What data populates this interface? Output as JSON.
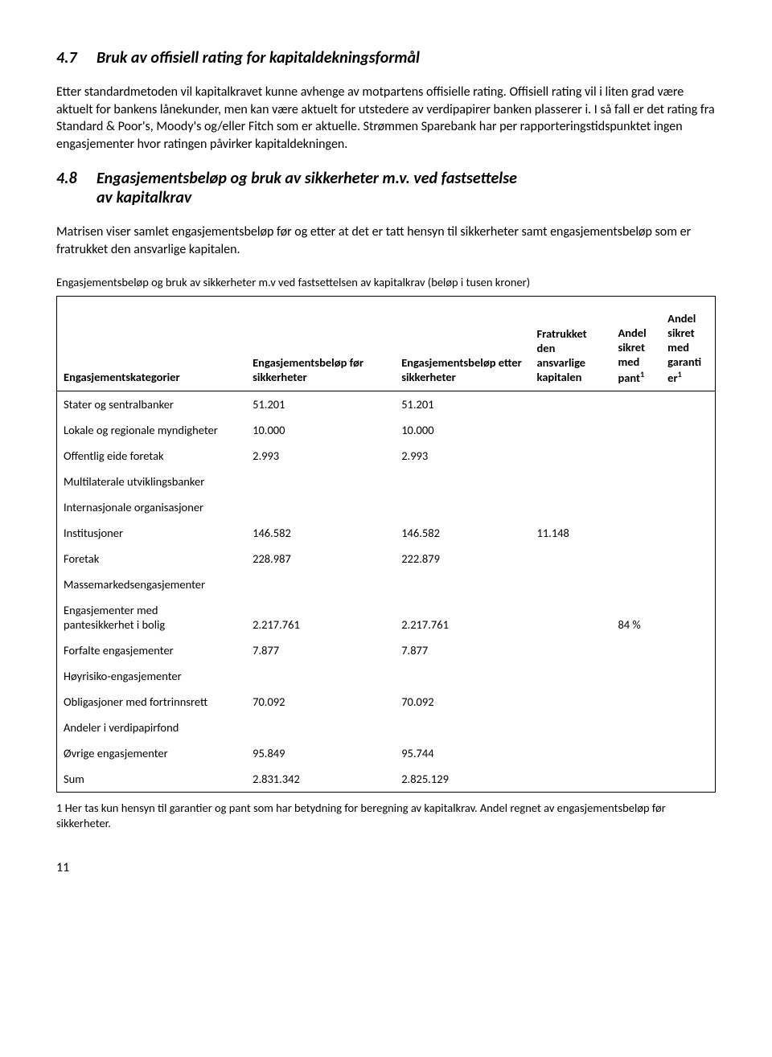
{
  "section47": {
    "num": "4.7",
    "title": "Bruk av offisiell rating for kapitaldekningsformål",
    "para": "Etter standardmetoden vil kapitalkravet kunne avhenge av motpartens offisielle rating. Offisiell rating vil i liten grad være aktuelt for bankens lånekunder, men kan være aktuelt for utstedere av verdipapirer banken plasserer i. I så fall er det rating fra Standard & Poor's, Moody's og/eller Fitch som er aktuelle. Strømmen Sparebank har per rapporteringstidspunktet ingen engasjementer hvor ratingen påvirker kapitaldekningen."
  },
  "section48": {
    "num": "4.8",
    "title_line1": "Engasjementsbeløp og bruk av sikkerheter m.v. ved fastsettelse",
    "title_line2": "av kapitalkrav",
    "para": "Matrisen viser samlet engasjementsbeløp før og etter at det er tatt hensyn til sikkerheter samt engasjementsbeløp som er fratrukket den ansvarlige kapitalen."
  },
  "table": {
    "caption": "Engasjementsbeløp og bruk av sikkerheter m.v ved fastsettelsen av kapitalkrav (beløp i tusen kroner)",
    "headers": {
      "col1": "Engasjementskategorier",
      "col2": "Engasjementsbeløp før sikkerheter",
      "col3": "Engasjementsbeløp etter sikkerheter",
      "col4": "Fratrukket den ansvarlige kapitalen",
      "col5_l1": "Andel",
      "col5_l2": "sikret",
      "col5_l3": "med",
      "col5_l4": "pant",
      "col6_l1": "Andel",
      "col6_l2": "sikret",
      "col6_l3": "med",
      "col6_l4": "garanti",
      "col6_l5": "er",
      "sup": "1"
    },
    "rows": [
      {
        "label": "Stater og sentralbanker",
        "v1": "51.201",
        "v2": "51.201",
        "v3": "",
        "v4": "",
        "v5": ""
      },
      {
        "label": "Lokale og regionale myndigheter",
        "v1": "10.000",
        "v2": "10.000",
        "v3": "",
        "v4": "",
        "v5": ""
      },
      {
        "label": "Offentlig eide foretak",
        "v1": "2.993",
        "v2": "2.993",
        "v3": "",
        "v4": "",
        "v5": ""
      },
      {
        "label": "Multilaterale utviklingsbanker",
        "v1": "",
        "v2": "",
        "v3": "",
        "v4": "",
        "v5": ""
      },
      {
        "label": "Internasjonale organisasjoner",
        "v1": "",
        "v2": "",
        "v3": "",
        "v4": "",
        "v5": ""
      },
      {
        "label": "Institusjoner",
        "v1": "146.582",
        "v2": "146.582",
        "v3": "11.148",
        "v4": "",
        "v5": ""
      },
      {
        "label": "Foretak",
        "v1": "228.987",
        "v2": "222.879",
        "v3": "",
        "v4": "",
        "v5": ""
      },
      {
        "label": "Massemarkedsengasjementer",
        "v1": "",
        "v2": "",
        "v3": "",
        "v4": "",
        "v5": ""
      },
      {
        "label_l1": "Engasjementer med",
        "label_l2": "pantesikkerhet i bolig",
        "v1": "2.217.761",
        "v2": "2.217.761",
        "v3": "",
        "v4": "84 %",
        "v5": ""
      },
      {
        "label": "Forfalte engasjementer",
        "v1": "7.877",
        "v2": "7.877",
        "v3": "",
        "v4": "",
        "v5": ""
      },
      {
        "label": "Høyrisiko-engasjementer",
        "v1": "",
        "v2": "",
        "v3": "",
        "v4": "",
        "v5": ""
      },
      {
        "label": "Obligasjoner med fortrinnsrett",
        "v1": "70.092",
        "v2": "70.092",
        "v3": "",
        "v4": "",
        "v5": ""
      },
      {
        "label": "Andeler i verdipapirfond",
        "v1": "",
        "v2": "",
        "v3": "",
        "v4": "",
        "v5": ""
      },
      {
        "label": "Øvrige engasjementer",
        "v1": "95.849",
        "v2": "95.744",
        "v3": "",
        "v4": "",
        "v5": ""
      },
      {
        "label": "Sum",
        "v1": "2.831.342",
        "v2": "2.825.129",
        "v3": "",
        "v4": "",
        "v5": ""
      }
    ]
  },
  "footnote": "1 Her tas kun hensyn til garantier og pant som har betydning for beregning av kapitalkrav. Andel regnet av engasjementsbeløp før sikkerheter.",
  "pageNum": "11"
}
